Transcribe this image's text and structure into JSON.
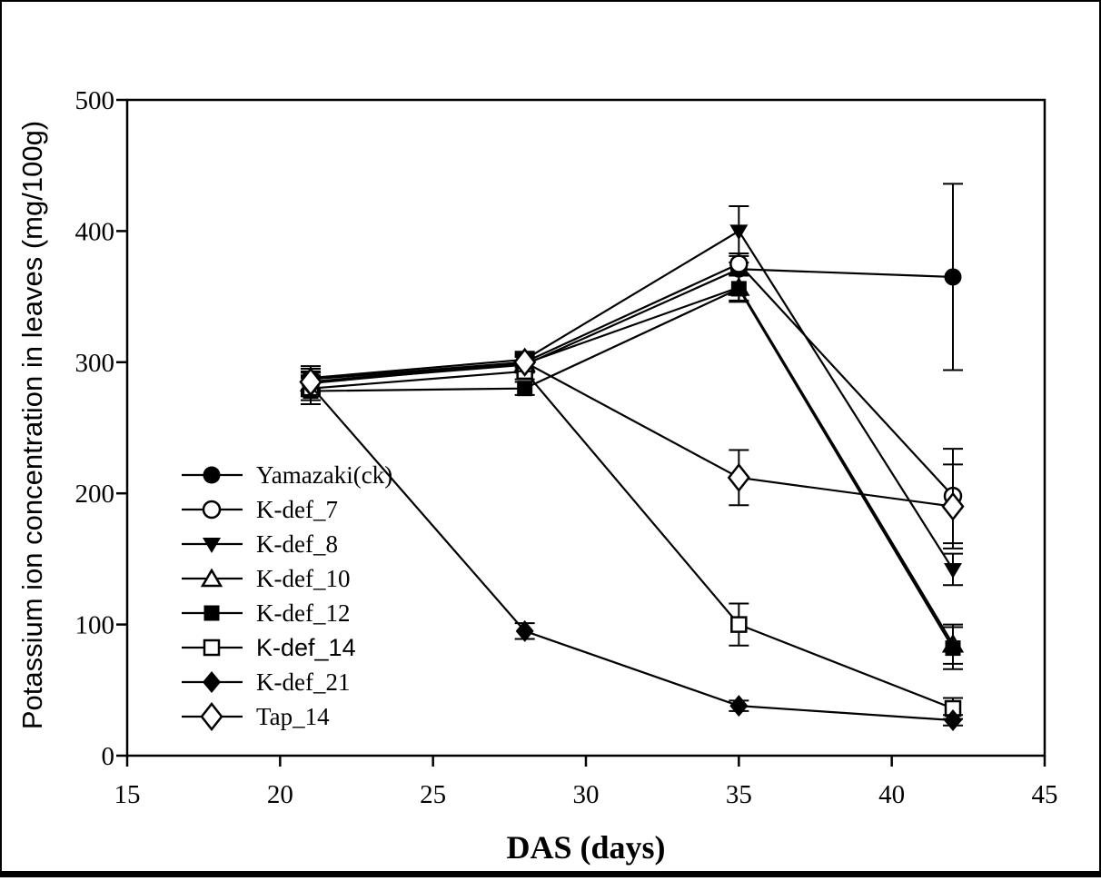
{
  "figure": {
    "background": "#ffffff",
    "frame_color": "#000000",
    "ink_color": "#000000"
  },
  "chart_data": {
    "type": "line",
    "title": "",
    "xlabel": "DAS (days)",
    "ylabel": "Potassium ion concentration in leaves (mg/100g)",
    "xlim": [
      15,
      45
    ],
    "ylim": [
      0,
      500
    ],
    "xticks": [
      15,
      20,
      25,
      30,
      35,
      40,
      45
    ],
    "yticks": [
      0,
      100,
      200,
      300,
      400,
      500
    ],
    "grid": false,
    "legend_position": "inside-left-middle",
    "x": [
      21,
      28,
      35,
      42
    ],
    "series": [
      {
        "name": "Yamazaki(ck)",
        "marker": "circle-filled",
        "label_font": "serif",
        "values": [
          285,
          298,
          371,
          365
        ],
        "yerr": [
          8,
          6,
          5,
          71
        ]
      },
      {
        "name": "K-def_7",
        "marker": "circle-open",
        "label_font": "serif",
        "values": [
          287,
          300,
          375,
          198
        ],
        "yerr": [
          8,
          6,
          8,
          36
        ]
      },
      {
        "name": "K-def_8",
        "marker": "triangle-down-filled",
        "label_font": "serif",
        "values": [
          288,
          302,
          400,
          142
        ],
        "yerr": [
          9,
          6,
          19,
          12
        ]
      },
      {
        "name": "K-def_10",
        "marker": "triangle-up-open",
        "label_font": "serif",
        "values": [
          284,
          299,
          357,
          85
        ],
        "yerr": [
          8,
          6,
          10,
          15
        ]
      },
      {
        "name": "K-def_12",
        "marker": "square-filled",
        "label_font": "serif",
        "values": [
          278,
          280,
          356,
          82
        ],
        "yerr": [
          10,
          5,
          10,
          16
        ]
      },
      {
        "name": "K-def_14",
        "marker": "square-open",
        "label_font": "sans",
        "values": [
          280,
          293,
          100,
          36
        ],
        "yerr": [
          9,
          6,
          16,
          8
        ]
      },
      {
        "name": "K-def_21",
        "marker": "diamond-filled",
        "label_font": "serif",
        "values": [
          282,
          95,
          38,
          27
        ],
        "yerr": [
          8,
          6,
          4,
          4
        ]
      },
      {
        "name": "Tap_14",
        "marker": "diamond-open",
        "label_font": "serif",
        "values": [
          285,
          300,
          212,
          190
        ],
        "yerr": [
          10,
          7,
          21,
          32
        ]
      }
    ]
  }
}
